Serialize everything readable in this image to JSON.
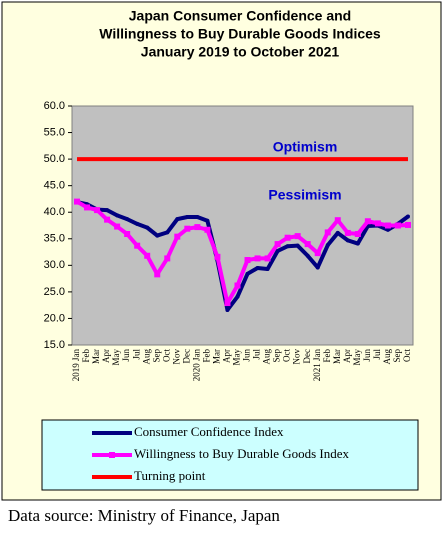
{
  "chart_data": {
    "type": "line",
    "title": [
      "Japan Consumer Confidence and",
      "Willingness to Buy Durable Goods Indices",
      "January 2019 to October 2021"
    ],
    "categories": [
      "2019 Jan",
      "Feb",
      "Mar",
      "Apr",
      "May",
      "Jun",
      "Jul",
      "Aug",
      "Sep",
      "Oct",
      "Nov",
      "Dec",
      "2020 Jan",
      "Feb",
      "Mar",
      "Apr",
      "May",
      "Jun",
      "Jul",
      "Aug",
      "Sep",
      "Oct",
      "Nov",
      "Dec",
      "2021 Jan",
      "Feb",
      "Mar",
      "Apr",
      "May",
      "Jun",
      "Jul",
      "Aug",
      "Sep",
      "Oct"
    ],
    "series": [
      {
        "name": "Consumer Confidence Index",
        "color": "#000080",
        "values": [
          41.9,
          41.5,
          40.5,
          40.4,
          39.4,
          38.7,
          37.8,
          37.1,
          35.6,
          36.2,
          38.7,
          39.1,
          39.1,
          38.4,
          30.9,
          21.6,
          24.1,
          28.4,
          29.5,
          29.3,
          32.7,
          33.6,
          33.7,
          31.8,
          29.6,
          33.8,
          36.1,
          34.7,
          34.1,
          37.4,
          37.5,
          36.7,
          37.8,
          39.2
        ]
      },
      {
        "name": "Willingness to Buy Durable Goods Index",
        "color": "#ff00ff",
        "values": [
          42.0,
          40.9,
          40.4,
          38.6,
          37.3,
          35.9,
          33.7,
          31.8,
          28.3,
          31.3,
          35.4,
          36.9,
          37.2,
          36.7,
          31.6,
          22.9,
          26.2,
          31.0,
          31.3,
          31.3,
          34.0,
          35.2,
          35.5,
          34.0,
          32.3,
          36.2,
          38.5,
          36.1,
          35.9,
          38.3,
          37.9,
          37.5,
          37.5,
          37.6
        ]
      },
      {
        "name": "Turning point",
        "color": "#ff0000",
        "values": [
          50,
          50,
          50,
          50,
          50,
          50,
          50,
          50,
          50,
          50,
          50,
          50,
          50,
          50,
          50,
          50,
          50,
          50,
          50,
          50,
          50,
          50,
          50,
          50,
          50,
          50,
          50,
          50,
          50,
          50,
          50,
          50,
          50,
          50
        ]
      }
    ],
    "annotations": [
      "Optimism",
      "Pessimism"
    ],
    "ylim": [
      15,
      60
    ],
    "yticks": [
      {
        "value": 15,
        "label": "15.0"
      },
      {
        "value": 20,
        "label": "20.0"
      },
      {
        "value": 25,
        "label": "25.0"
      },
      {
        "value": 30,
        "label": "30.0"
      },
      {
        "value": 35,
        "label": "35.0"
      },
      {
        "value": 40,
        "label": "40.0"
      },
      {
        "value": 45,
        "label": "45.0"
      },
      {
        "value": 50,
        "label": "50.0"
      },
      {
        "value": 55,
        "label": "55.0"
      },
      {
        "value": 60,
        "label": "60.0"
      }
    ],
    "plot_color": "#c0c0c0",
    "source": "Data source: Ministry of Finance, Japan"
  }
}
